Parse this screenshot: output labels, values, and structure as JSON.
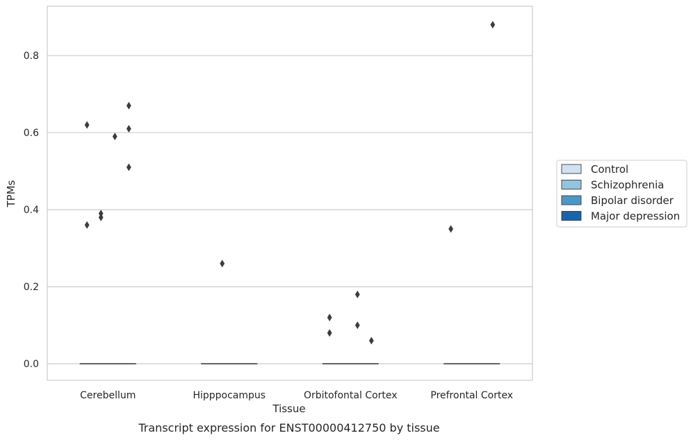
{
  "chart_data": {
    "type": "box",
    "title": "",
    "caption": "Transcript expression for ENST00000412750 by tissue",
    "xlabel": "Tissue",
    "ylabel": "TPMs",
    "ylim": [
      -0.043,
      0.928
    ],
    "yticks": [
      0.0,
      0.2,
      0.4,
      0.6,
      0.8
    ],
    "ytick_labels": [
      "0.0",
      "0.2",
      "0.4",
      "0.6",
      "0.8"
    ],
    "grid": "horizontal",
    "legend_placement": "right",
    "categories": [
      "Cerebellum",
      "Hipppocampus",
      "Orbitofontal Cortex",
      "Prefrontal Cortex"
    ],
    "series": [
      {
        "name": "Control",
        "color": "#cfe1f2",
        "boxes": [
          {
            "median": 0,
            "q1": 0,
            "q3": 0
          },
          {
            "median": 0,
            "q1": 0,
            "q3": 0
          },
          {
            "median": 0,
            "q1": 0,
            "q3": 0
          },
          {
            "median": 0,
            "q1": 0,
            "q3": 0
          }
        ],
        "outliers": [
          [
            0.62,
            0.36
          ],
          [],
          [
            0.12,
            0.08
          ],
          [
            0.35
          ]
        ]
      },
      {
        "name": "Schizophrenia",
        "color": "#93c4de",
        "boxes": [
          {
            "median": 0,
            "q1": 0,
            "q3": 0
          },
          {
            "median": 0,
            "q1": 0,
            "q3": 0
          },
          {
            "median": 0,
            "q1": 0,
            "q3": 0
          },
          {
            "median": 0,
            "q1": 0,
            "q3": 0
          }
        ],
        "outliers": [
          [
            0.39,
            0.38
          ],
          [
            0.26
          ],
          [],
          []
        ]
      },
      {
        "name": "Bipolar disorder",
        "color": "#4a98c9",
        "boxes": [
          {
            "median": 0,
            "q1": 0,
            "q3": 0
          },
          {
            "median": 0,
            "q1": 0,
            "q3": 0
          },
          {
            "median": 0,
            "q1": 0,
            "q3": 0
          },
          {
            "median": 0,
            "q1": 0,
            "q3": 0
          }
        ],
        "outliers": [
          [
            0.59
          ],
          [],
          [
            0.18,
            0.1
          ],
          []
        ]
      },
      {
        "name": "Major depression",
        "color": "#1764ab",
        "boxes": [
          {
            "median": 0,
            "q1": 0,
            "q3": 0
          },
          {
            "median": 0,
            "q1": 0,
            "q3": 0
          },
          {
            "median": 0,
            "q1": 0,
            "q3": 0
          },
          {
            "median": 0,
            "q1": 0,
            "q3": 0
          }
        ],
        "outliers": [
          [
            0.67,
            0.61,
            0.51
          ],
          [],
          [
            0.06
          ],
          [
            0.88
          ]
        ]
      }
    ]
  }
}
